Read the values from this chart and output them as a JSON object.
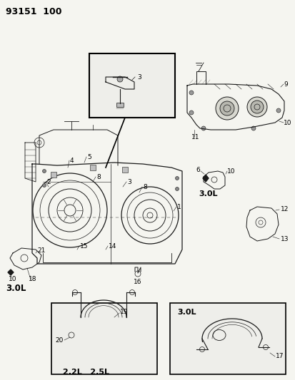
{
  "title": "93151  100",
  "bg_color": "#f0f0f0",
  "fg_color": "#1a1a1a",
  "fig_width": 4.14,
  "fig_height": 5.33,
  "dpi": 100,
  "labels": {
    "title": "93151  100",
    "lbl_3_inset": "3",
    "lbl_3_main": "3",
    "lbl_2": "2",
    "lbl_4": "4",
    "lbl_5": "5",
    "lbl_8a": "8",
    "lbl_8b": "8",
    "lbl_1": "1",
    "lbl_14": "14",
    "lbl_15": "15",
    "lbl_21": "21",
    "lbl_10_lower_left": "10",
    "lbl_18": "18",
    "lbl_3_0L_lower_left": "3.0L",
    "lbl_16": "16",
    "lbl_9": "9",
    "lbl_10_top_right": "10",
    "lbl_11": "11",
    "lbl_6": "6",
    "lbl_10_mid_right": "10",
    "lbl_3_0L_mid_right": "3.0L",
    "lbl_12": "12",
    "lbl_13": "13",
    "lbl_19": "19",
    "lbl_20": "20",
    "lbl_22l_25l": "2.2L   2.5L",
    "lbl_3_0L_box": "3.0L",
    "lbl_17": "17"
  }
}
